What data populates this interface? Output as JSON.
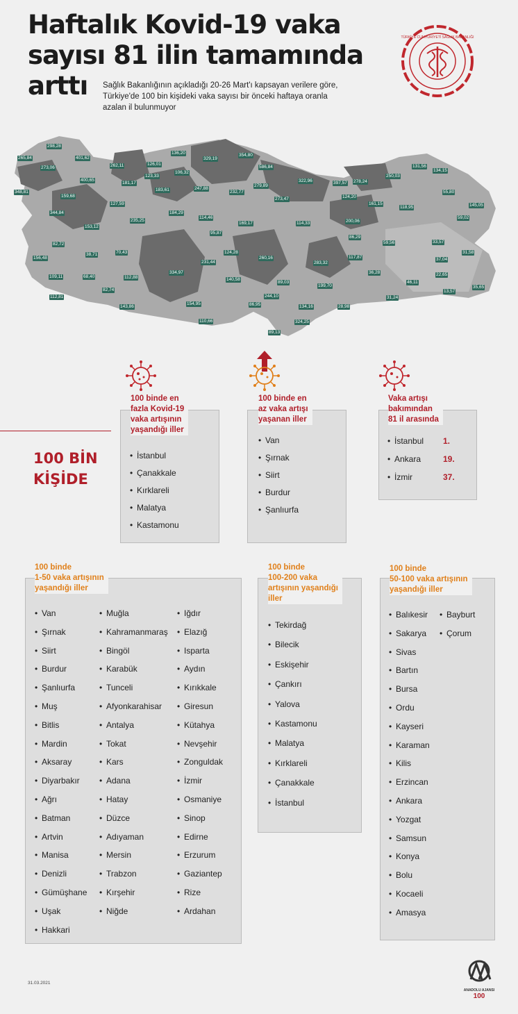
{
  "title": [
    "Haftalık Kovid-19 vaka",
    "sayısı 81 ilin tamamında",
    "arttı"
  ],
  "subtitle": [
    "Sağlık Bakanlığının açıkladığı 20-26 Mart'ı kapsayan verilere göre,",
    "Türkiye'de 100 bin kişideki vaka sayısı bir önceki haftaya oranla",
    "azalan il bulunmuyor"
  ],
  "logo_text": "TÜRKİYE CUMHURİYETİ SAĞLIK BAKANLIĞI",
  "map_values": [
    "298,28",
    "265,84",
    "401,62",
    "273,06",
    "262,11",
    "136,20",
    "329,19",
    "354,80",
    "586,84",
    "131,56",
    "134,15",
    "126,01",
    "106,32",
    "123,33",
    "181,17",
    "279,89",
    "322,96",
    "397,57",
    "278,24",
    "250,03",
    "400,65",
    "183,61",
    "247,88",
    "232,77",
    "273,47",
    "124,20",
    "348,81",
    "159,68",
    "127,59",
    "161,15",
    "55,80",
    "118,95",
    "145,05",
    "344,84",
    "235,25",
    "184,29",
    "114,46",
    "169,17",
    "114,33",
    "200,06",
    "59,02",
    "153,12",
    "95,87",
    "86,29",
    "59,56",
    "33,57",
    "82,72",
    "70,43",
    "38,71",
    "124,28",
    "260,16",
    "283,32",
    "117,87",
    "31,58",
    "156,48",
    "231,44",
    "37,04",
    "109,11",
    "68,40",
    "112,88",
    "334,97",
    "140,58",
    "36,28",
    "22,65",
    "89,03",
    "46,11",
    "199,70",
    "82,74",
    "13,57",
    "35,65",
    "112,81",
    "143,86",
    "154,95",
    "244,10",
    "86,95",
    "134,16",
    "28,98",
    "31,24",
    "324,25",
    "110,66",
    "89,13"
  ],
  "colors": {
    "accent_red": "#b01f2a",
    "accent_orange": "#e0801b",
    "label_bg": "#2e6a5c"
  },
  "high": {
    "heading": [
      "100 binde en",
      "fazla Kovid-19",
      "vaka artışının",
      "yaşandığı iller"
    ],
    "items": [
      "İstanbul",
      "Çanakkale",
      "Kırklareli",
      "Malatya",
      "Kastamonu"
    ]
  },
  "low": {
    "heading": [
      "100 binde en",
      "az vaka artışı",
      "yaşanan iller"
    ],
    "items": [
      "Van",
      "Şırnak",
      "Siirt",
      "Burdur",
      "Şanlıurfa"
    ]
  },
  "rank": {
    "heading": [
      "Vaka artışı",
      "bakımından",
      "81 il arasında"
    ],
    "items": [
      {
        "city": "İstanbul",
        "pos": "1."
      },
      {
        "city": "Ankara",
        "pos": "19."
      },
      {
        "city": "İzmir",
        "pos": "37."
      }
    ]
  },
  "unit_label": [
    "100 BİN",
    "KİŞİDE"
  ],
  "band_1_50": {
    "heading": [
      "100 binde",
      "1-50 vaka artışının",
      "yaşandığı iller"
    ],
    "col1": [
      "Van",
      "Şırnak",
      "Siirt",
      "Burdur",
      "Şanlıurfa",
      "Muş",
      "Bitlis",
      "Mardin",
      "Aksaray",
      "Diyarbakır",
      "Ağrı",
      "Batman",
      "Artvin",
      "Manisa",
      "Denizli",
      "Gümüşhane",
      "Uşak",
      "Hakkari"
    ],
    "col2": [
      "Muğla",
      "Kahramanmaraş",
      "Bingöl",
      "Karabük",
      "Tunceli",
      "Afyonkarahisar",
      "Antalya",
      "Tokat",
      "Kars",
      "Adana",
      "Hatay",
      "Düzce",
      "Adıyaman",
      "Mersin",
      "Trabzon",
      "Kırşehir",
      "Niğde"
    ],
    "col3": [
      "Iğdır",
      "Elazığ",
      "Isparta",
      "Aydın",
      "Kırıkkale",
      "Giresun",
      "Kütahya",
      "Nevşehir",
      "Zonguldak",
      "İzmir",
      "Osmaniye",
      "Sinop",
      "Edirne",
      "Erzurum",
      "Gaziantep",
      "Rize",
      "Ardahan"
    ]
  },
  "band_100_200": {
    "heading": [
      "100 binde",
      "100-200 vaka",
      "artışının yaşandığı",
      "iller"
    ],
    "items": [
      "Tekirdağ",
      "Bilecik",
      "Eskişehir",
      "Çankırı",
      "Yalova",
      "Kastamonu",
      "Malatya",
      "Kırklareli",
      "Çanakkale",
      "İstanbul"
    ]
  },
  "band_50_100": {
    "heading": [
      "100 binde",
      "50-100 vaka artışının",
      "yaşandığı iller"
    ],
    "col1": [
      "Balıkesir",
      "Sakarya",
      "Sivas",
      "Bartın",
      "Bursa",
      "Ordu",
      "Kayseri",
      "Karaman",
      "Kilis",
      "Erzincan",
      "Ankara",
      "Yozgat",
      "Samsun",
      "Konya",
      "Bolu",
      "Kocaeli",
      "Amasya"
    ],
    "col2": [
      "Bayburt",
      "Çorum"
    ]
  },
  "date": "31.03.2021",
  "agency": [
    "ANADOLU AJANSI",
    "100"
  ]
}
